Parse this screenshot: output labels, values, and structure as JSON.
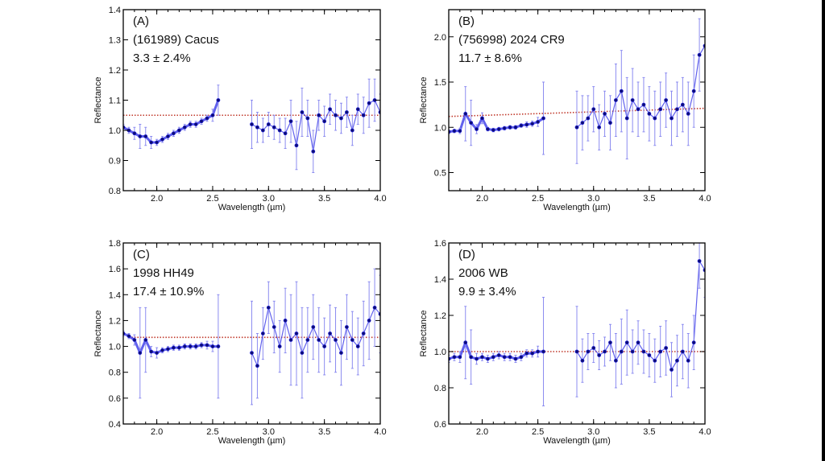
{
  "chart_data": [
    {
      "type": "scatter",
      "panel_label": "(A)",
      "object_name": "(161989) Cacus",
      "value_text": "3.3 ± 2.4%",
      "xlabel": "Wavelength (µm)",
      "ylabel": "Reflectance",
      "xlim": [
        1.7,
        4.0
      ],
      "ylim": [
        0.8,
        1.4
      ],
      "xticks": [
        "2.0",
        "2.5",
        "3.0",
        "3.5",
        "4.0"
      ],
      "yticks": [
        "0.8",
        "0.9",
        "1.0",
        "1.1",
        "1.2",
        "1.3",
        "1.4"
      ],
      "segments": [
        {
          "x": [
            1.7,
            1.75,
            1.8,
            1.85,
            1.9,
            1.95,
            2.0,
            2.05,
            2.1,
            2.15,
            2.2,
            2.25,
            2.3,
            2.35,
            2.4,
            2.45,
            2.5,
            2.55
          ],
          "y": [
            1.01,
            1.0,
            0.99,
            0.98,
            0.98,
            0.96,
            0.96,
            0.97,
            0.98,
            0.99,
            1.0,
            1.01,
            1.02,
            1.02,
            1.03,
            1.04,
            1.05,
            1.1
          ],
          "err": [
            0.01,
            0.01,
            0.02,
            0.04,
            0.03,
            0.02,
            0.01,
            0.01,
            0.01,
            0.01,
            0.01,
            0.01,
            0.01,
            0.01,
            0.01,
            0.01,
            0.02,
            0.05
          ]
        },
        {
          "x": [
            2.85,
            2.9,
            2.95,
            3.0,
            3.05,
            3.1,
            3.15,
            3.2,
            3.25,
            3.3,
            3.35,
            3.4,
            3.45,
            3.5,
            3.55,
            3.6,
            3.65,
            3.7,
            3.75,
            3.8,
            3.85,
            3.9,
            3.95,
            4.0
          ],
          "y": [
            1.02,
            1.01,
            1.0,
            1.02,
            1.01,
            1.0,
            0.99,
            1.03,
            0.95,
            1.06,
            1.04,
            0.93,
            1.05,
            1.03,
            1.07,
            1.05,
            1.04,
            1.06,
            1.0,
            1.07,
            1.05,
            1.09,
            1.1,
            1.06
          ],
          "err": [
            0.08,
            0.05,
            0.04,
            0.04,
            0.04,
            0.04,
            0.05,
            0.07,
            0.08,
            0.08,
            0.06,
            0.07,
            0.05,
            0.05,
            0.05,
            0.05,
            0.05,
            0.05,
            0.05,
            0.05,
            0.06,
            0.08,
            0.07,
            0.06
          ]
        }
      ],
      "fit": {
        "x": [
          1.7,
          4.0
        ],
        "y": [
          1.05,
          1.05
        ]
      },
      "colors": {
        "points": "#1a1ad0",
        "errorbars": "#8c8cf0",
        "fit": "#c0392b"
      }
    },
    {
      "type": "scatter",
      "panel_label": "(B)",
      "object_name": "(756998) 2024 CR9",
      "value_text": "11.7 ± 8.6%",
      "xlabel": "Wavelength (µm)",
      "ylabel": "Reflectance",
      "xlim": [
        1.7,
        4.0
      ],
      "ylim": [
        0.3,
        2.3
      ],
      "xticks": [
        "2.0",
        "2.5",
        "3.0",
        "3.5",
        "4.0"
      ],
      "yticks": [
        "0.5",
        "1.0",
        "1.5",
        "2.0"
      ],
      "segments": [
        {
          "x": [
            1.7,
            1.75,
            1.8,
            1.85,
            1.9,
            1.95,
            2.0,
            2.05,
            2.1,
            2.15,
            2.2,
            2.25,
            2.3,
            2.35,
            2.4,
            2.45,
            2.5,
            2.55
          ],
          "y": [
            0.95,
            0.96,
            0.96,
            1.15,
            1.05,
            0.98,
            1.1,
            0.98,
            0.97,
            0.98,
            0.99,
            1.0,
            1.0,
            1.02,
            1.03,
            1.04,
            1.06,
            1.1
          ],
          "err": [
            0.02,
            0.02,
            0.03,
            0.3,
            0.25,
            0.05,
            0.06,
            0.02,
            0.02,
            0.02,
            0.02,
            0.02,
            0.02,
            0.02,
            0.03,
            0.03,
            0.05,
            0.4
          ]
        },
        {
          "x": [
            2.85,
            2.9,
            2.95,
            3.0,
            3.05,
            3.1,
            3.15,
            3.2,
            3.25,
            3.3,
            3.35,
            3.4,
            3.45,
            3.5,
            3.55,
            3.6,
            3.65,
            3.7,
            3.75,
            3.8,
            3.85,
            3.9,
            3.95,
            4.0
          ],
          "y": [
            1.0,
            1.05,
            1.1,
            1.2,
            1.0,
            1.15,
            1.05,
            1.3,
            1.4,
            1.1,
            1.3,
            1.2,
            1.25,
            1.15,
            1.1,
            1.2,
            1.3,
            1.1,
            1.2,
            1.25,
            1.15,
            1.4,
            1.8,
            1.9
          ],
          "err": [
            0.4,
            0.3,
            0.25,
            0.25,
            0.25,
            0.25,
            0.3,
            0.4,
            0.45,
            0.45,
            0.35,
            0.3,
            0.3,
            0.3,
            0.3,
            0.3,
            0.3,
            0.3,
            0.3,
            0.3,
            0.35,
            0.4,
            0.4,
            0.4
          ]
        }
      ],
      "fit": {
        "x": [
          1.7,
          4.0
        ],
        "y": [
          1.12,
          1.21
        ]
      },
      "colors": {
        "points": "#1a1ad0",
        "errorbars": "#8c8cf0",
        "fit": "#c0392b"
      }
    },
    {
      "type": "scatter",
      "panel_label": "(C)",
      "object_name": "1998 HH49",
      "value_text": "17.4 ± 10.9%",
      "xlabel": "Wavelength (µm)",
      "ylabel": "Reflectance",
      "xlim": [
        1.7,
        4.0
      ],
      "ylim": [
        0.4,
        1.8
      ],
      "xticks": [
        "2.0",
        "2.5",
        "3.0",
        "3.5",
        "4.0"
      ],
      "yticks": [
        "0.4",
        "0.6",
        "0.8",
        "1.0",
        "1.2",
        "1.4",
        "1.6",
        "1.8"
      ],
      "segments": [
        {
          "x": [
            1.7,
            1.75,
            1.8,
            1.85,
            1.9,
            1.95,
            2.0,
            2.05,
            2.1,
            2.15,
            2.2,
            2.25,
            2.3,
            2.35,
            2.4,
            2.45,
            2.5,
            2.55
          ],
          "y": [
            1.1,
            1.08,
            1.05,
            0.95,
            1.05,
            0.96,
            0.95,
            0.97,
            0.98,
            0.99,
            0.99,
            1.0,
            1.0,
            1.0,
            1.01,
            1.01,
            1.0,
            1.0
          ],
          "err": [
            0.02,
            0.02,
            0.04,
            0.35,
            0.25,
            0.04,
            0.04,
            0.02,
            0.02,
            0.02,
            0.02,
            0.02,
            0.02,
            0.02,
            0.02,
            0.03,
            0.04,
            0.4
          ]
        },
        {
          "x": [
            2.85,
            2.9,
            2.95,
            3.0,
            3.05,
            3.1,
            3.15,
            3.2,
            3.25,
            3.3,
            3.35,
            3.4,
            3.45,
            3.5,
            3.55,
            3.6,
            3.65,
            3.7,
            3.75,
            3.8,
            3.85,
            3.9,
            3.95,
            4.0
          ],
          "y": [
            0.95,
            0.85,
            1.1,
            1.3,
            1.15,
            1.0,
            1.2,
            1.05,
            1.1,
            0.95,
            1.05,
            1.15,
            1.05,
            1.0,
            1.1,
            1.05,
            0.95,
            1.15,
            1.05,
            1.0,
            1.1,
            1.2,
            1.3,
            1.25
          ],
          "err": [
            0.4,
            0.25,
            0.2,
            0.2,
            0.2,
            0.2,
            0.25,
            0.35,
            0.4,
            0.35,
            0.25,
            0.25,
            0.25,
            0.22,
            0.22,
            0.25,
            0.25,
            0.25,
            0.22,
            0.22,
            0.25,
            0.3,
            0.3,
            0.3
          ]
        }
      ],
      "fit": {
        "x": [
          1.75,
          4.0
        ],
        "y": [
          1.07,
          1.07
        ]
      },
      "colors": {
        "points": "#1a1ad0",
        "errorbars": "#8c8cf0",
        "fit": "#c0392b"
      }
    },
    {
      "type": "scatter",
      "panel_label": "(D)",
      "object_name": "2006 WB",
      "value_text": "9.9 ± 3.4%",
      "xlabel": "Wavelength (µm)",
      "ylabel": "Reflectance",
      "xlim": [
        1.7,
        4.0
      ],
      "ylim": [
        0.6,
        1.6
      ],
      "xticks": [
        "2.0",
        "2.5",
        "3.0",
        "3.5",
        "4.0"
      ],
      "yticks": [
        "0.6",
        "0.8",
        "1.0",
        "1.2",
        "1.4",
        "1.6"
      ],
      "segments": [
        {
          "x": [
            1.7,
            1.75,
            1.8,
            1.85,
            1.9,
            1.95,
            2.0,
            2.05,
            2.1,
            2.15,
            2.2,
            2.25,
            2.3,
            2.35,
            2.4,
            2.45,
            2.5,
            2.55
          ],
          "y": [
            0.96,
            0.97,
            0.97,
            1.05,
            0.97,
            0.96,
            0.97,
            0.96,
            0.97,
            0.98,
            0.97,
            0.97,
            0.96,
            0.97,
            0.99,
            0.99,
            1.0,
            1.0
          ],
          "err": [
            0.02,
            0.02,
            0.03,
            0.2,
            0.15,
            0.03,
            0.02,
            0.02,
            0.02,
            0.02,
            0.02,
            0.02,
            0.02,
            0.02,
            0.02,
            0.02,
            0.03,
            0.3
          ]
        },
        {
          "x": [
            2.85,
            2.9,
            2.95,
            3.0,
            3.05,
            3.1,
            3.15,
            3.2,
            3.25,
            3.3,
            3.35,
            3.4,
            3.45,
            3.5,
            3.55,
            3.6,
            3.65,
            3.7,
            3.75,
            3.8,
            3.85,
            3.9,
            3.95,
            4.0
          ],
          "y": [
            1.0,
            0.95,
            1.0,
            1.02,
            0.98,
            1.0,
            1.05,
            0.95,
            1.0,
            1.05,
            1.0,
            1.05,
            1.0,
            0.98,
            0.95,
            1.0,
            1.02,
            0.9,
            0.95,
            1.0,
            0.95,
            1.05,
            1.5,
            1.45
          ],
          "err": [
            0.25,
            0.12,
            0.1,
            0.08,
            0.08,
            0.08,
            0.1,
            0.15,
            0.18,
            0.18,
            0.12,
            0.12,
            0.12,
            0.12,
            0.12,
            0.14,
            0.15,
            0.15,
            0.14,
            0.15,
            0.15,
            0.15,
            0.15,
            0.15
          ]
        }
      ],
      "fit": {
        "x": [
          1.7,
          4.0
        ],
        "y": [
          1.0,
          1.0
        ]
      },
      "colors": {
        "points": "#1a1ad0",
        "errorbars": "#8c8cf0",
        "fit": "#c0392b"
      }
    }
  ]
}
